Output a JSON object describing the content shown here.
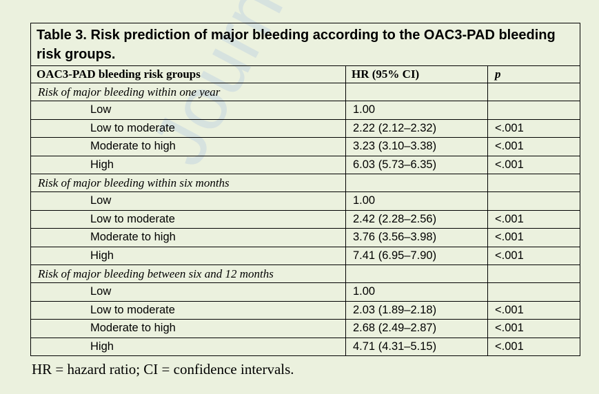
{
  "caption": "Table 3. Risk prediction of major bleeding according to the OAC3-PAD bleeding risk groups.",
  "watermark": "Journal",
  "headers": {
    "group": "OAC3-PAD bleeding risk groups",
    "hr": "HR (95% CI)",
    "p": "p"
  },
  "sections": [
    {
      "title": "Risk of major bleeding within one year",
      "rows": [
        {
          "group": "Low",
          "hr": "1.00",
          "p": ""
        },
        {
          "group": "Low to moderate",
          "hr": "2.22 (2.12–2.32)",
          "p": "<.001"
        },
        {
          "group": "Moderate to high",
          "hr": "3.23 (3.10–3.38)",
          "p": "<.001"
        },
        {
          "group": "High",
          "hr": "6.03 (5.73–6.35)",
          "p": "<.001"
        }
      ]
    },
    {
      "title": "Risk of major bleeding within six months",
      "rows": [
        {
          "group": "Low",
          "hr": "1.00",
          "p": ""
        },
        {
          "group": "Low to moderate",
          "hr": "2.42 (2.28–2.56)",
          "p": "<.001"
        },
        {
          "group": "Moderate to high",
          "hr": "3.76 (3.56–3.98)",
          "p": "<.001"
        },
        {
          "group": "High",
          "hr": "7.41 (6.95–7.90)",
          "p": "<.001"
        }
      ]
    },
    {
      "title": "Risk of major bleeding between six and 12 months",
      "rows": [
        {
          "group": "Low",
          "hr": "1.00",
          "p": ""
        },
        {
          "group": "Low to moderate",
          "hr": "2.03 (1.89–2.18)",
          "p": "<.001"
        },
        {
          "group": "Moderate to high",
          "hr": "2.68 (2.49–2.87)",
          "p": "<.001"
        },
        {
          "group": "High",
          "hr": "4.71 (4.31–5.15)",
          "p": "<.001"
        }
      ]
    }
  ],
  "footnote": "HR = hazard ratio; CI = confidence intervals."
}
